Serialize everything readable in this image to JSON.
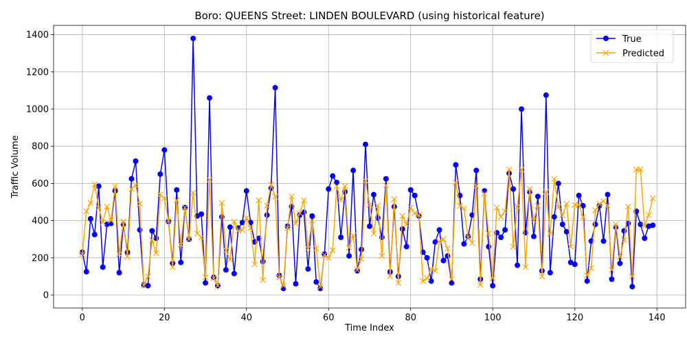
{
  "chart_data": {
    "type": "line",
    "title": "Boro: QUEENS Street: LINDEN BOULEVARD (using historical feature)",
    "xlabel": "Time Index",
    "ylabel": "Traffic Volume",
    "xlim": [
      -7,
      147
    ],
    "ylim": [
      -70,
      1450
    ],
    "xticks": [
      0,
      20,
      40,
      60,
      80,
      100,
      120,
      140
    ],
    "yticks": [
      0,
      200,
      400,
      600,
      800,
      1000,
      1200,
      1400
    ],
    "grid": true,
    "legend_position": "top-right",
    "series": [
      {
        "name": "True",
        "color": "#0000ff",
        "marker": "circle",
        "values": [
          230,
          125,
          410,
          325,
          585,
          150,
          380,
          385,
          560,
          120,
          380,
          230,
          625,
          720,
          350,
          55,
          50,
          345,
          305,
          650,
          780,
          395,
          170,
          565,
          175,
          470,
          300,
          1380,
          425,
          435,
          65,
          1060,
          95,
          50,
          420,
          135,
          365,
          115,
          360,
          390,
          560,
          390,
          285,
          305,
          180,
          430,
          575,
          1115,
          105,
          35,
          370,
          475,
          60,
          430,
          445,
          140,
          425,
          70,
          35,
          220,
          570,
          640,
          605,
          310,
          555,
          210,
          670,
          130,
          245,
          810,
          370,
          540,
          415,
          310,
          625,
          125,
          475,
          100,
          355,
          260,
          565,
          535,
          425,
          230,
          200,
          75,
          285,
          350,
          185,
          210,
          65,
          700,
          535,
          275,
          315,
          430,
          670,
          85,
          560,
          260,
          50,
          335,
          310,
          350,
          655,
          570,
          160,
          1000,
          335,
          555,
          315,
          530,
          130,
          1075,
          120,
          420,
          600,
          380,
          340,
          175,
          165,
          535,
          480,
          75,
          290,
          380,
          480,
          290,
          540,
          85,
          365,
          170,
          345,
          385,
          45,
          450,
          380,
          305,
          370,
          375
        ]
      },
      {
        "name": "Predicted",
        "color": "#ffa500",
        "marker": "x",
        "values": [
          220,
          450,
          495,
          595,
          470,
          390,
          475,
          400,
          585,
          220,
          395,
          205,
          570,
          590,
          490,
          50,
          100,
          295,
          225,
          540,
          520,
          400,
          150,
          510,
          270,
          470,
          300,
          550,
          330,
          310,
          95,
          620,
          90,
          50,
          495,
          240,
          190,
          395,
          345,
          350,
          415,
          360,
          165,
          510,
          80,
          480,
          595,
          530,
          95,
          50,
          360,
          530,
          385,
          440,
          510,
          250,
          400,
          250,
          45,
          215,
          200,
          240,
          585,
          510,
          585,
          255,
          320,
          135,
          195,
          615,
          485,
          330,
          480,
          210,
          590,
          100,
          515,
          65,
          425,
          380,
          470,
          440,
          430,
          75,
          90,
          140,
          130,
          290,
          300,
          250,
          85,
          605,
          480,
          465,
          310,
          280,
          585,
          55,
          545,
          330,
          90,
          470,
          420,
          450,
          675,
          260,
          475,
          675,
          150,
          570,
          400,
          480,
          100,
          555,
          330,
          625,
          475,
          430,
          490,
          260,
          485,
          485,
          420,
          105,
          145,
          455,
          490,
          505,
          480,
          135,
          380,
          205,
          295,
          475,
          100,
          675,
          675,
          370,
          430,
          520
        ]
      }
    ]
  }
}
